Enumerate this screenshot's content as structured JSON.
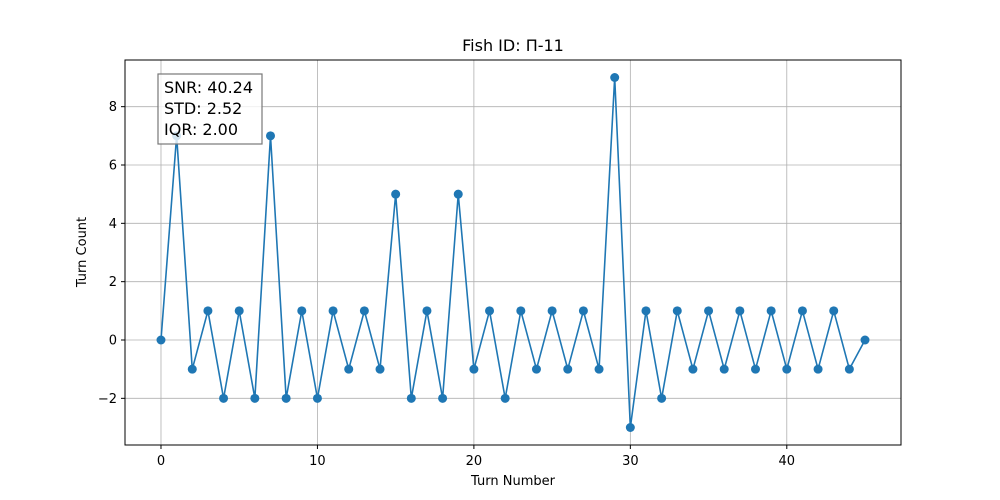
{
  "chart_data": {
    "type": "line",
    "title": "Fish ID: П-11",
    "xlabel": "Turn Number",
    "ylabel": "Turn Count",
    "xlim": [
      -2.3,
      47.3
    ],
    "ylim": [
      -3.6,
      9.6
    ],
    "xticks": [
      0,
      10,
      20,
      30,
      40
    ],
    "yticks": [
      -2,
      0,
      2,
      4,
      6,
      8
    ],
    "xtick_labels": [
      "0",
      "10",
      "20",
      "30",
      "40"
    ],
    "ytick_labels": [
      "−2",
      "0",
      "2",
      "4",
      "6",
      "8"
    ],
    "grid": true,
    "color": "#1f77b4",
    "marker": "circle",
    "series": [
      {
        "x": [
          0,
          1,
          2,
          3,
          4,
          5,
          6,
          7,
          8,
          9,
          10,
          11,
          12,
          13,
          14,
          15,
          16,
          17,
          18,
          19,
          20,
          21,
          22,
          23,
          24,
          25,
          26,
          27,
          28,
          29,
          30,
          31,
          32,
          33,
          34,
          35,
          36,
          37,
          38,
          39,
          40,
          41,
          42,
          43,
          44,
          45
        ],
        "values": [
          0,
          7,
          -1,
          1,
          -2,
          1,
          -2,
          7,
          -2,
          1,
          -2,
          1,
          -1,
          1,
          -1,
          5,
          -2,
          1,
          -2,
          5,
          -1,
          1,
          -2,
          1,
          -1,
          1,
          -1,
          1,
          -1,
          9,
          -3,
          1,
          -2,
          1,
          -1,
          1,
          -1,
          1,
          -1,
          1,
          -1,
          1,
          -1,
          1,
          -1,
          0
        ]
      }
    ],
    "annotation": {
      "lines": [
        "SNR: 40.24",
        "STD: 2.52",
        "IQR: 2.00"
      ],
      "placement": "top-left"
    }
  }
}
